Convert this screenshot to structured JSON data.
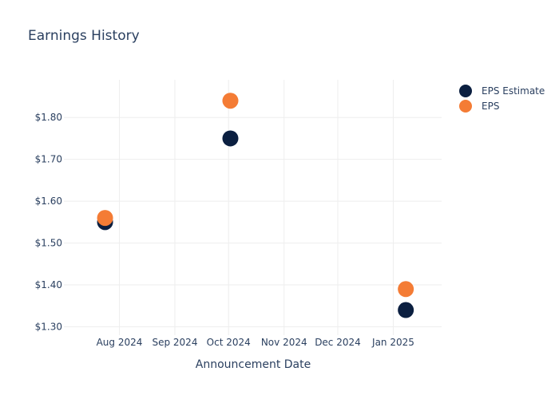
{
  "chart_data": {
    "type": "scatter",
    "title": "Earnings History",
    "xlabel": "Announcement Date",
    "ylabel": "",
    "x_ticks": [
      "Aug 2024",
      "Sep 2024",
      "Oct 2024",
      "Nov 2024",
      "Dec 2024",
      "Jan 2025"
    ],
    "x_tick_dates": [
      "2024-08-01",
      "2024-09-01",
      "2024-10-01",
      "2024-11-01",
      "2024-12-01",
      "2025-01-01"
    ],
    "xlim": [
      "2024-07-01",
      "2025-01-28"
    ],
    "y_ticks": [
      "$1.30",
      "$1.40",
      "$1.50",
      "$1.60",
      "$1.70",
      "$1.80"
    ],
    "y_tick_values": [
      1.3,
      1.4,
      1.5,
      1.6,
      1.7,
      1.8
    ],
    "ylim": [
      1.28,
      1.89
    ],
    "grid": true,
    "legend_position": "top-right",
    "series": [
      {
        "name": "EPS Estimate",
        "color": "#0b1f40",
        "points": [
          {
            "x": "2024-07-24",
            "y": 1.55
          },
          {
            "x": "2024-10-02",
            "y": 1.75
          },
          {
            "x": "2025-01-08",
            "y": 1.34
          }
        ]
      },
      {
        "name": "EPS",
        "color": "#f47c35",
        "points": [
          {
            "x": "2024-07-24",
            "y": 1.56
          },
          {
            "x": "2024-10-02",
            "y": 1.84
          },
          {
            "x": "2025-01-08",
            "y": 1.39
          }
        ]
      }
    ]
  }
}
